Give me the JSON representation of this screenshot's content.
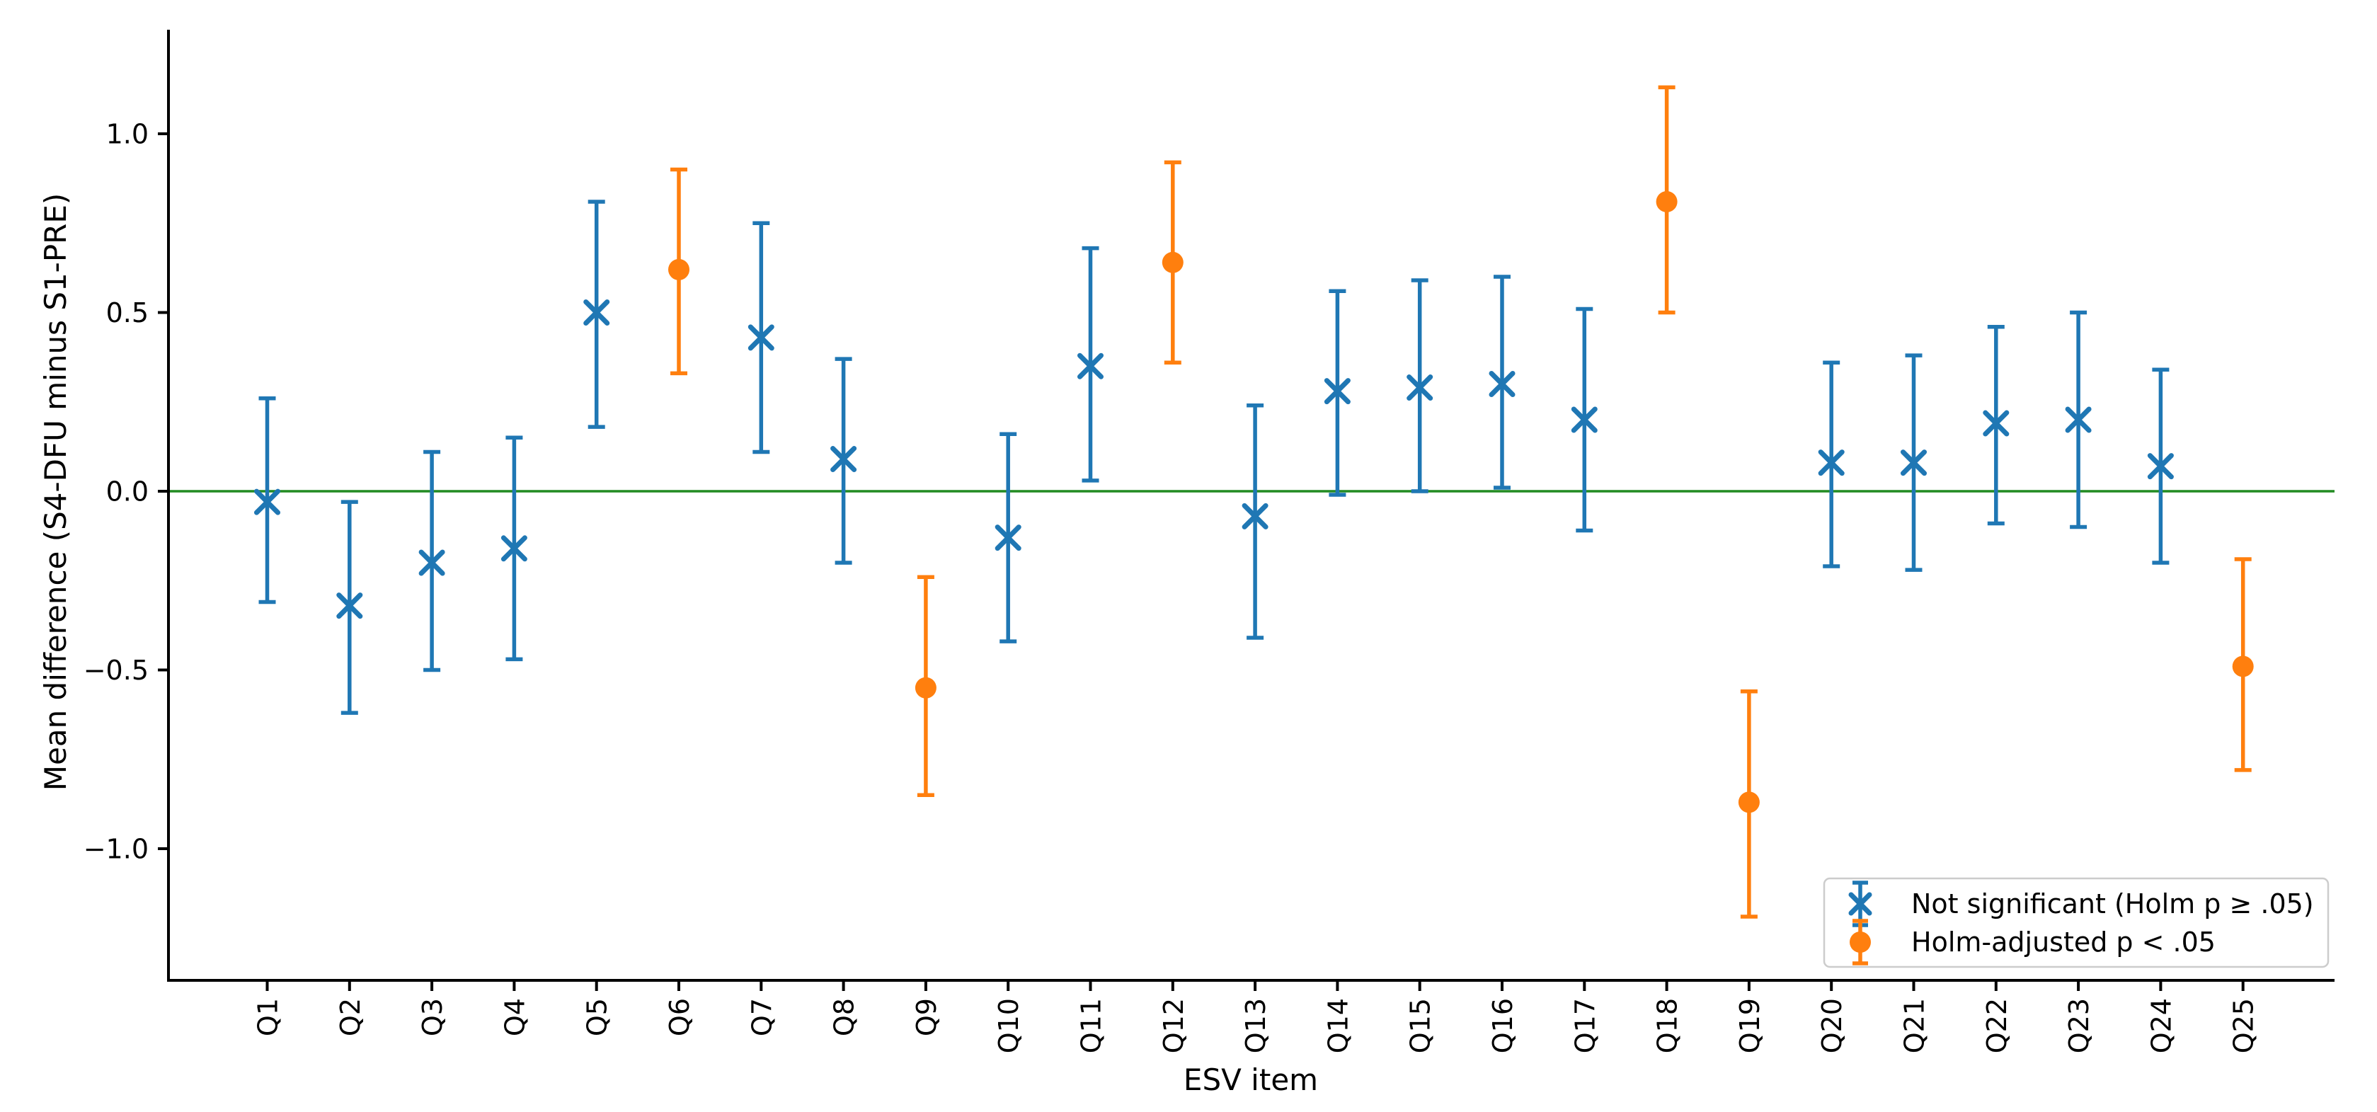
{
  "chart_data": {
    "type": "scatter",
    "subtype": "errorbar",
    "title": "",
    "xlabel": "ESV item",
    "ylabel": "Mean difference (S4-DFU minus S1-PRE)",
    "categories": [
      "Q1",
      "Q2",
      "Q3",
      "Q4",
      "Q5",
      "Q6",
      "Q7",
      "Q8",
      "Q9",
      "Q10",
      "Q11",
      "Q12",
      "Q13",
      "Q14",
      "Q15",
      "Q16",
      "Q17",
      "Q18",
      "Q19",
      "Q20",
      "Q21",
      "Q22",
      "Q23",
      "Q24",
      "Q25"
    ],
    "ylim": [
      -1.37,
      1.29
    ],
    "grid": false,
    "yticks": [
      {
        "value": 1.0,
        "label": "1.0"
      },
      {
        "value": 0.5,
        "label": "0.5"
      },
      {
        "value": 0.0,
        "label": "0.0"
      },
      {
        "value": -0.5,
        "label": "−0.5"
      },
      {
        "value": -1.0,
        "label": "−1.0"
      }
    ],
    "zero_line": {
      "value": 0.0,
      "color": "#228b22"
    },
    "colors": {
      "not_significant": "#1f77b4",
      "significant": "#ff7f0e",
      "axis": "#000000",
      "legend_border": "#cccccc",
      "background": "#ffffff"
    },
    "points": [
      {
        "item": "Q1",
        "mean": -0.03,
        "ci_low": -0.31,
        "ci_high": 0.26,
        "significant": false
      },
      {
        "item": "Q2",
        "mean": -0.32,
        "ci_low": -0.62,
        "ci_high": -0.03,
        "significant": false
      },
      {
        "item": "Q3",
        "mean": -0.2,
        "ci_low": -0.5,
        "ci_high": 0.11,
        "significant": false
      },
      {
        "item": "Q4",
        "mean": -0.16,
        "ci_low": -0.47,
        "ci_high": 0.15,
        "significant": false
      },
      {
        "item": "Q5",
        "mean": 0.5,
        "ci_low": 0.18,
        "ci_high": 0.81,
        "significant": false
      },
      {
        "item": "Q6",
        "mean": 0.62,
        "ci_low": 0.33,
        "ci_high": 0.9,
        "significant": true
      },
      {
        "item": "Q7",
        "mean": 0.43,
        "ci_low": 0.11,
        "ci_high": 0.75,
        "significant": false
      },
      {
        "item": "Q8",
        "mean": 0.09,
        "ci_low": -0.2,
        "ci_high": 0.37,
        "significant": false
      },
      {
        "item": "Q9",
        "mean": -0.55,
        "ci_low": -0.85,
        "ci_high": -0.24,
        "significant": true
      },
      {
        "item": "Q10",
        "mean": -0.13,
        "ci_low": -0.42,
        "ci_high": 0.16,
        "significant": false
      },
      {
        "item": "Q11",
        "mean": 0.35,
        "ci_low": 0.03,
        "ci_high": 0.68,
        "significant": false
      },
      {
        "item": "Q12",
        "mean": 0.64,
        "ci_low": 0.36,
        "ci_high": 0.92,
        "significant": true
      },
      {
        "item": "Q13",
        "mean": -0.07,
        "ci_low": -0.41,
        "ci_high": 0.24,
        "significant": false
      },
      {
        "item": "Q14",
        "mean": 0.28,
        "ci_low": -0.01,
        "ci_high": 0.56,
        "significant": false
      },
      {
        "item": "Q15",
        "mean": 0.29,
        "ci_low": 0.0,
        "ci_high": 0.59,
        "significant": false
      },
      {
        "item": "Q16",
        "mean": 0.3,
        "ci_low": 0.01,
        "ci_high": 0.6,
        "significant": false
      },
      {
        "item": "Q17",
        "mean": 0.2,
        "ci_low": -0.11,
        "ci_high": 0.51,
        "significant": false
      },
      {
        "item": "Q18",
        "mean": 0.81,
        "ci_low": 0.5,
        "ci_high": 1.13,
        "significant": true
      },
      {
        "item": "Q19",
        "mean": -0.87,
        "ci_low": -1.19,
        "ci_high": -0.56,
        "significant": true
      },
      {
        "item": "Q20",
        "mean": 0.08,
        "ci_low": -0.21,
        "ci_high": 0.36,
        "significant": false
      },
      {
        "item": "Q21",
        "mean": 0.08,
        "ci_low": -0.22,
        "ci_high": 0.38,
        "significant": false
      },
      {
        "item": "Q22",
        "mean": 0.19,
        "ci_low": -0.09,
        "ci_high": 0.46,
        "significant": false
      },
      {
        "item": "Q23",
        "mean": 0.2,
        "ci_low": -0.1,
        "ci_high": 0.5,
        "significant": false
      },
      {
        "item": "Q24",
        "mean": 0.07,
        "ci_low": -0.2,
        "ci_high": 0.34,
        "significant": false
      },
      {
        "item": "Q25",
        "mean": -0.49,
        "ci_low": -0.78,
        "ci_high": -0.19,
        "significant": true
      }
    ],
    "legend": {
      "position": "lower right",
      "entries": [
        {
          "label": "Not significant (Holm p ≥ .05)",
          "marker": "x-errorbar",
          "color": "#1f77b4"
        },
        {
          "label": "Holm-adjusted p < .05",
          "marker": "circle-errorbar",
          "color": "#ff7f0e"
        }
      ]
    }
  }
}
